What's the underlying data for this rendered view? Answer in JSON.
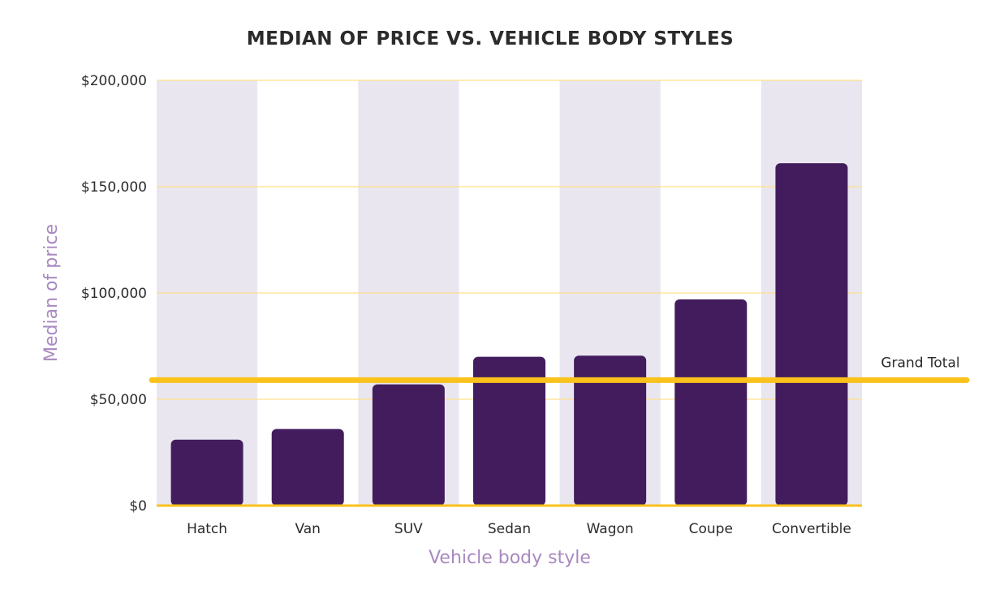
{
  "chart_data": {
    "type": "bar",
    "title": "MEDIAN OF PRICE VS. VEHICLE BODY STYLES",
    "xlabel": "Vehicle body style",
    "ylabel": "Median of price",
    "categories": [
      "Hatch",
      "Van",
      "SUV",
      "Sedan",
      "Wagon",
      "Coupe",
      "Convertible"
    ],
    "values": [
      31000,
      36000,
      57000,
      70000,
      70500,
      97000,
      161000
    ],
    "ylim": [
      0,
      200000
    ],
    "yticks": [
      0,
      50000,
      100000,
      150000,
      200000
    ],
    "ytick_labels": [
      "$0",
      "$50,000",
      "$100,000",
      "$150,000",
      "$200,000"
    ],
    "reference_line": {
      "label": "Grand Total",
      "value": 59000
    },
    "grid": true,
    "colors": {
      "bar": "#431C5D",
      "band": "#E9E6EF",
      "gridline": "#FFE08A",
      "baseline": "#FAC21B",
      "reference": "#FAC21B",
      "axis_title": "#A989C0",
      "text": "#2B2B2B"
    }
  }
}
